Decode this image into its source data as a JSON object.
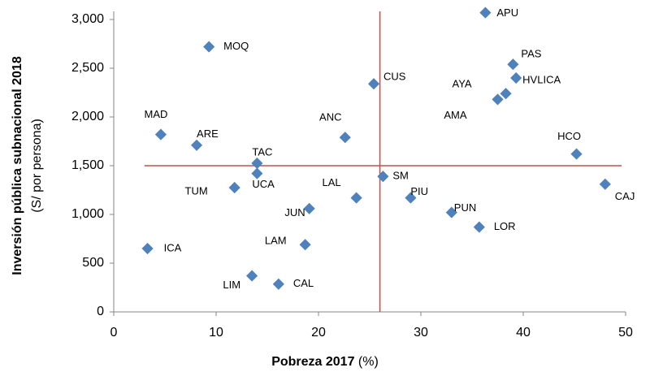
{
  "chart_data": {
    "type": "scatter",
    "x_label": {
      "bold": "Pobreza 2017",
      "normal": "(%)"
    },
    "y_label": {
      "bold": "Inversión pública subnacional 2018",
      "normal": "(S/ por persona)"
    },
    "color": "#4f81bd",
    "reference_color": "#c0504d",
    "reference_lines": {
      "x": 26,
      "y": 1500
    },
    "labels": [
      "APU",
      "MOQ",
      "PAS",
      "HVLICA",
      "CUS",
      "AYA",
      "AMA",
      "MAD",
      "ANC",
      "ARE",
      "HCO",
      "TAC",
      "UCA",
      "SM",
      "CAJ",
      "TUM",
      "LAL",
      "PIU",
      "JUN",
      "PUN",
      "LOR",
      "LAM",
      "ICA",
      "LIM",
      "CAL"
    ],
    "x": [
      36.3,
      9.3,
      39.0,
      39.3,
      25.4,
      38.3,
      37.5,
      4.6,
      22.6,
      8.1,
      45.2,
      14.0,
      14.0,
      26.3,
      48.0,
      11.8,
      23.7,
      29.0,
      19.1,
      33.0,
      35.7,
      18.7,
      3.3,
      13.5,
      16.1
    ],
    "values": [
      3070,
      2720,
      2540,
      2400,
      2340,
      2240,
      2180,
      1820,
      1790,
      1710,
      1620,
      1525,
      1420,
      1390,
      1310,
      1275,
      1170,
      1170,
      1060,
      1020,
      870,
      690,
      650,
      370,
      285
    ],
    "xlim": [
      0,
      50
    ],
    "xticks": [
      0,
      10,
      20,
      30,
      40,
      50
    ],
    "ylim": [
      0,
      3000
    ],
    "yticks": [
      0,
      500,
      {
        "value": 1000,
        "label": "1,000"
      },
      {
        "value": 1500,
        "label": "1,500"
      },
      {
        "value": 2000,
        "label": "2,000"
      },
      {
        "value": 2500,
        "label": "2,500"
      },
      {
        "value": 3000,
        "label": "3,000"
      }
    ]
  }
}
